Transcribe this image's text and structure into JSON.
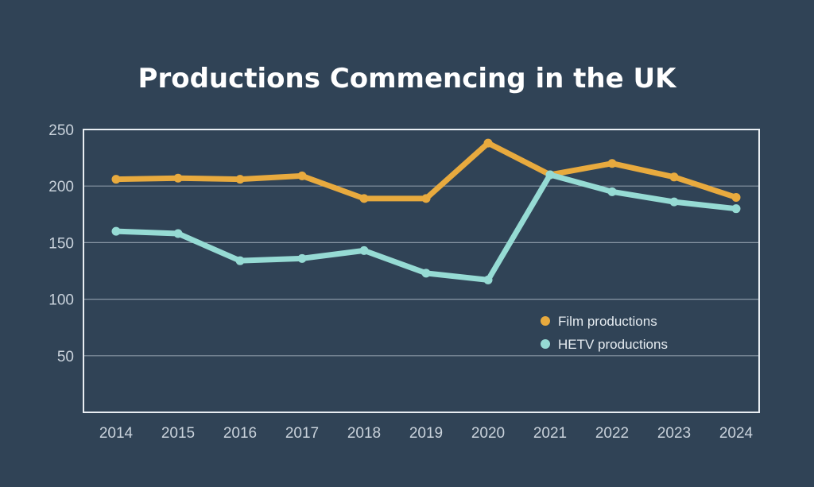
{
  "chart_data": {
    "type": "line",
    "title": "Productions Commencing in the UK",
    "xlabel": "",
    "ylabel": "",
    "categories": [
      "2014",
      "2015",
      "2016",
      "2017",
      "2018",
      "2019",
      "2020",
      "2021",
      "2022",
      "2023",
      "2024"
    ],
    "ylim": [
      0,
      250
    ],
    "yticks": [
      50,
      100,
      150,
      200,
      250
    ],
    "grid": true,
    "legend_position": "right",
    "series": [
      {
        "name": "Film productions",
        "color": "#e8aa3e",
        "values": [
          206,
          207,
          206,
          209,
          189,
          189,
          238,
          210,
          220,
          208,
          190
        ]
      },
      {
        "name": "HETV productions",
        "color": "#96dbd4",
        "values": [
          160,
          158,
          134,
          136,
          143,
          123,
          117,
          210,
          195,
          186,
          180
        ]
      }
    ]
  },
  "colors": {
    "background": "#304356",
    "axis": "#e8edf2",
    "grid": "#8896a4"
  }
}
